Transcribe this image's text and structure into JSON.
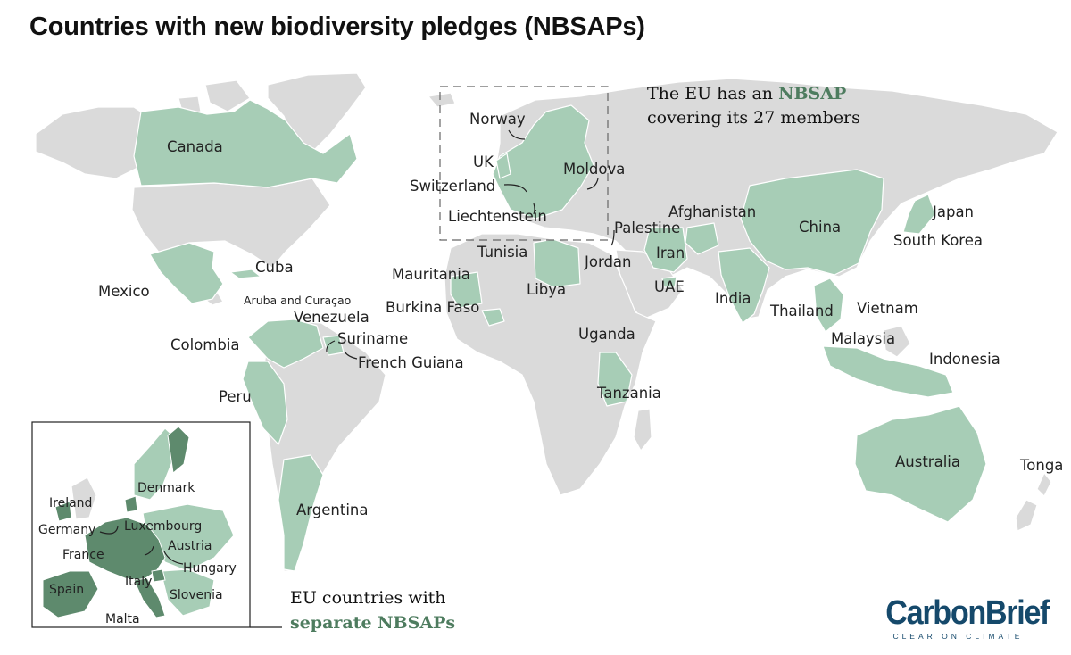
{
  "title": "Countries with new biodiversity pledges (NBSAPs)",
  "colors": {
    "land": "#dadada",
    "pledge": "#a7cdb6",
    "eu_separate": "#5e8a6d",
    "highlight_text": "#4e7c5f",
    "logo": "#15496b"
  },
  "legend": {
    "no_pledge": "land",
    "new_pledge": "pledge",
    "eu_separate": "eu_separate"
  },
  "eu_note": {
    "line1_prefix": "The EU has an ",
    "line1_highlight": "NBSAP",
    "line2": "covering its 27 members"
  },
  "inset_note": {
    "line1": "EU countries with",
    "line2_highlight": "separate NBSAPs"
  },
  "labels": {
    "canada": "Canada",
    "mexico": "Mexico",
    "cuba": "Cuba",
    "aruba": "Aruba and Curaçao",
    "venezuela": "Venezuela",
    "colombia": "Colombia",
    "suriname": "Suriname",
    "french_guiana": "French Guiana",
    "peru": "Peru",
    "argentina": "Argentina",
    "norway": "Norway",
    "uk": "UK",
    "moldova": "Moldova",
    "switzerland": "Switzerland",
    "liechtenstein": "Liechtenstein",
    "palestine": "Palestine",
    "afghanistan": "Afghanistan",
    "china": "China",
    "japan": "Japan",
    "south_korea": "South Korea",
    "tunisia": "Tunisia",
    "jordan": "Jordan",
    "iran": "Iran",
    "mauritania": "Mauritania",
    "libya": "Libya",
    "uae": "UAE",
    "india": "India",
    "thailand": "Thailand",
    "vietnam": "Vietnam",
    "burkina_faso": "Burkina Faso",
    "malaysia": "Malaysia",
    "uganda": "Uganda",
    "indonesia": "Indonesia",
    "tanzania": "Tanzania",
    "australia": "Australia",
    "tonga": "Tonga"
  },
  "inset_labels": {
    "ireland": "Ireland",
    "denmark": "Denmark",
    "germany": "Germany",
    "luxembourg": "Luxembourg",
    "austria": "Austria",
    "france": "France",
    "hungary": "Hungary",
    "spain": "Spain",
    "italy": "Italy",
    "slovenia": "Slovenia",
    "malta": "Malta"
  },
  "logo": {
    "name": "CarbonBrief",
    "tagline": "CLEAR ON CLIMATE"
  }
}
